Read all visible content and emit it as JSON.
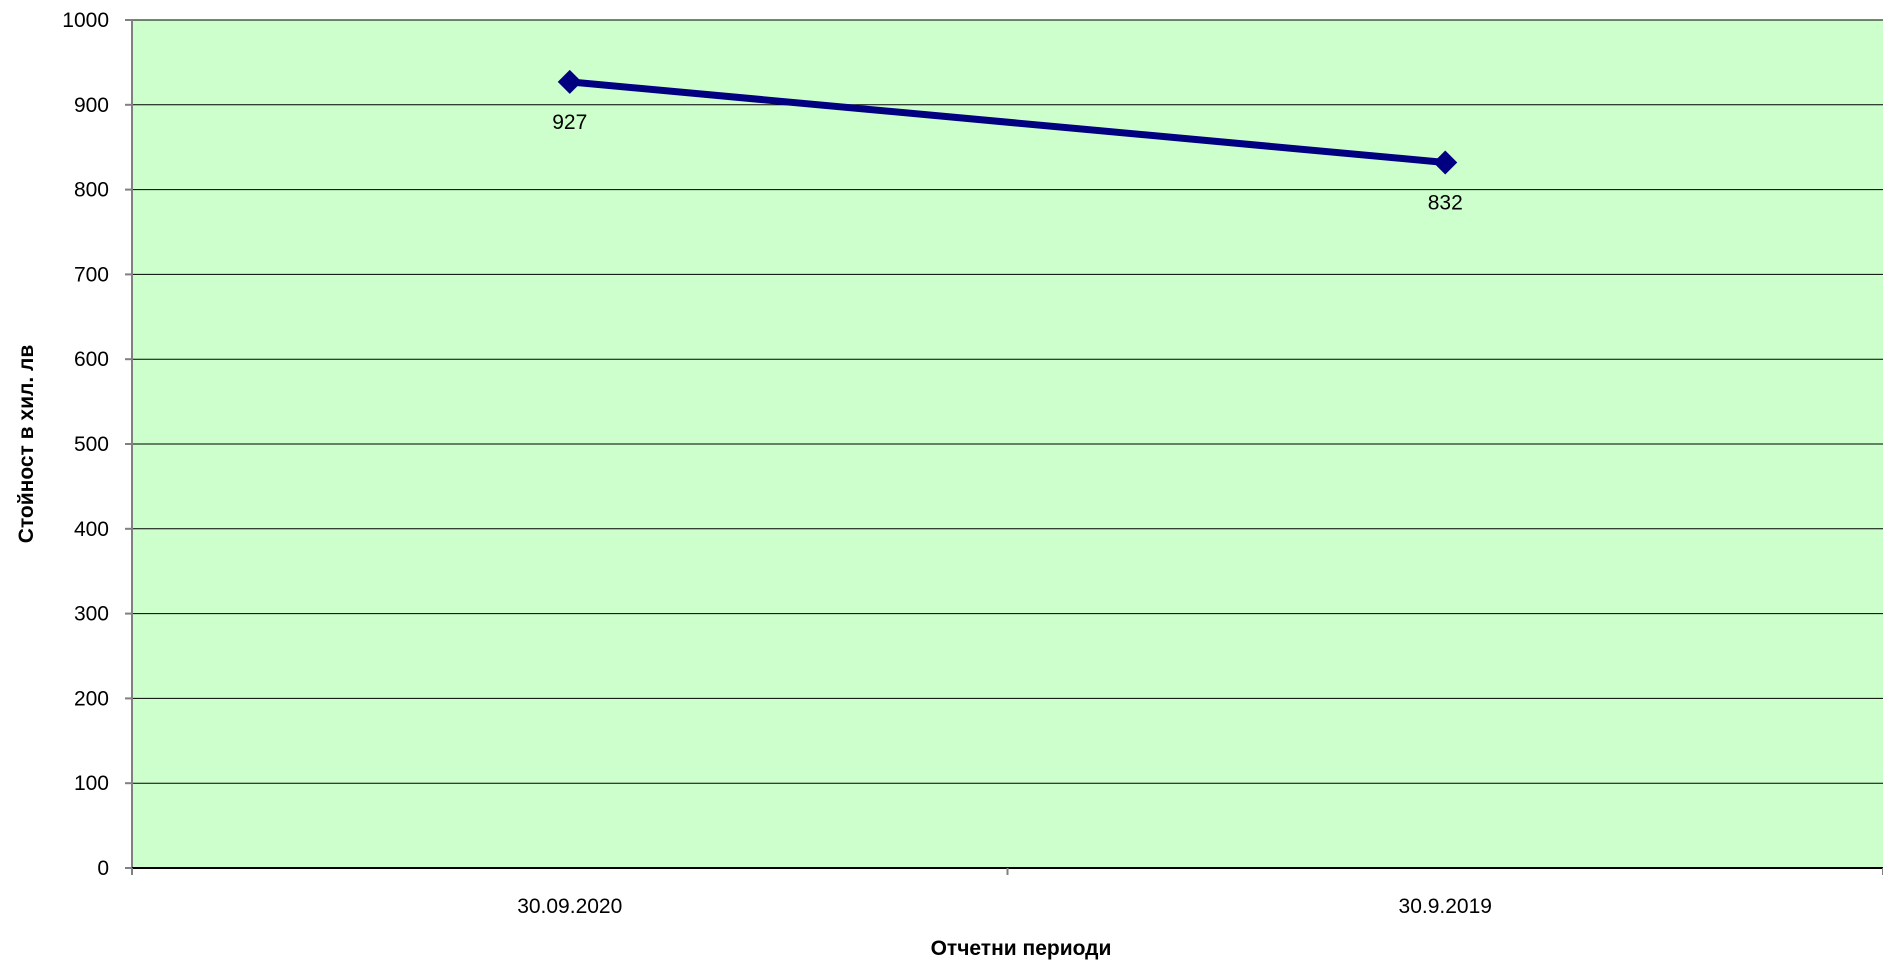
{
  "chart_data": {
    "type": "line",
    "categories": [
      "30.09.2020",
      "30.9.2019"
    ],
    "series": [
      {
        "values": [
          927,
          832
        ],
        "data_labels": [
          "927",
          "832"
        ],
        "color": "#000080",
        "marker": "diamond"
      }
    ],
    "title": "",
    "xlabel": "Отчетни периоди",
    "ylabel": "Стойност в хил. лв",
    "ylim": [
      0,
      1000
    ],
    "y_ticks": [
      0,
      100,
      200,
      300,
      400,
      500,
      600,
      700,
      800,
      900,
      1000
    ],
    "y_tick_labels": [
      "0",
      "100",
      "200",
      "300",
      "400",
      "500",
      "600",
      "700",
      "800",
      "900",
      "1000"
    ],
    "grid": true,
    "legend": "none",
    "colors": {
      "plot_background": "#CCFFCC",
      "gridline": "#000000",
      "axis": "#808080"
    }
  }
}
